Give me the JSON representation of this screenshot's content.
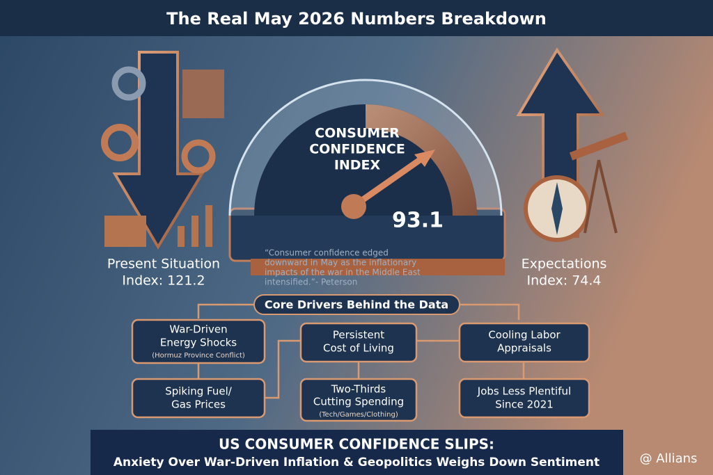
{
  "header": {
    "title": "The Real May 2026 Numbers Breakdown"
  },
  "gauge": {
    "label": [
      "CONSUMER",
      "CONFIDENCE",
      "INDEX"
    ],
    "value": "93.1"
  },
  "present": {
    "label": [
      "Present Situation",
      "Index: 121.2"
    ]
  },
  "expectations": {
    "label": [
      "Expectations",
      "Index: 74.4"
    ]
  },
  "quote": {
    "lines": [
      "“Consumer confidence edged",
      "downward in May as the inflationary",
      "impacts of the war in the Middle East",
      "intensified.”- Peterson"
    ]
  },
  "drivers": {
    "title": "Core Drivers Behind the Data",
    "boxes": [
      {
        "lines": [
          "War-Driven",
          "Energy Shocks"
        ],
        "note": "(Hormuz Province Conflict)"
      },
      {
        "lines": [
          "Spiking Fuel/",
          "Gas Prices"
        ]
      },
      {
        "lines": [
          "Persistent",
          "Cost of Living"
        ]
      },
      {
        "lines": [
          "Two-Thirds",
          "Cutting Spending"
        ],
        "note": "(Tech/Games/Clothing)"
      },
      {
        "lines": [
          "Cooling Labor",
          "Appraisals"
        ]
      },
      {
        "lines": [
          "Jobs Less Plentiful",
          "Since 2021"
        ]
      }
    ]
  },
  "banner": {
    "headline": "US CONSUMER CONFIDENCE SLIPS:",
    "subline": "Anxiety Over War-Driven Inflation & Geopolitics Weighs Down Sentiment"
  },
  "watermark": "@ Allians"
}
